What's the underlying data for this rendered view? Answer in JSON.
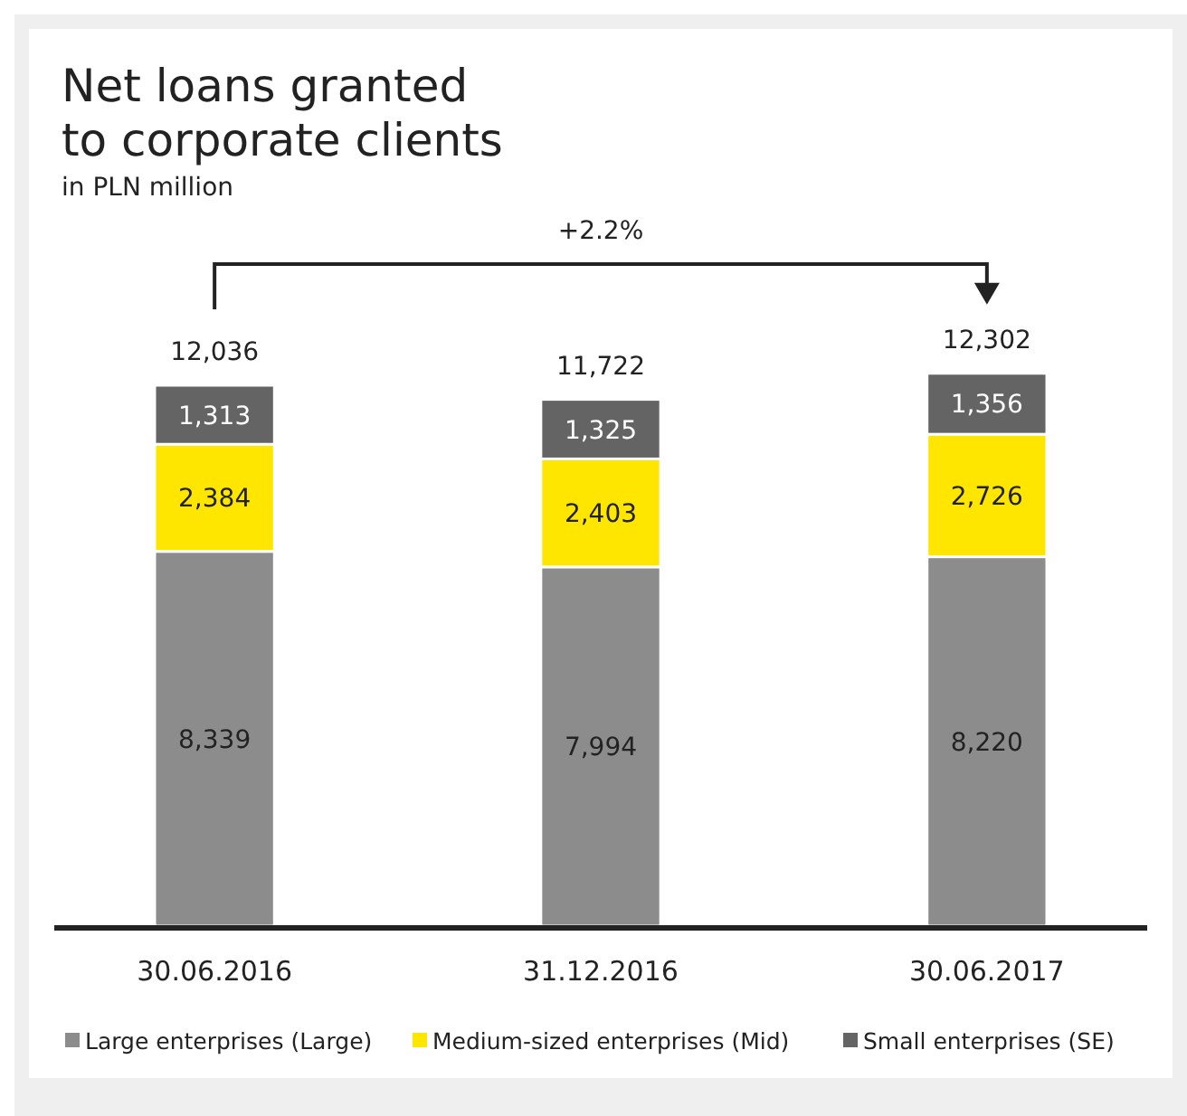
{
  "chart_data": {
    "type": "bar",
    "title": "Net loans granted\nto corporate clients",
    "subtitle": "in PLN million",
    "categories": [
      "30.06.2016",
      "31.12.2016",
      "30.06.2017"
    ],
    "stacked": true,
    "series": [
      {
        "name": "Large enterprises (Large)",
        "color": "#8c8c8c",
        "values": [
          8339,
          7994,
          8220
        ],
        "value_labels": [
          "8,339",
          "7,994",
          "8,220"
        ]
      },
      {
        "name": "Medium-sized enterprises (Mid)",
        "color": "#ffe600",
        "values": [
          2384,
          2403,
          2726
        ],
        "value_labels": [
          "2,384",
          "2,403",
          "2,726"
        ]
      },
      {
        "name": "Small enterprises (SE)",
        "color": "#646464",
        "values": [
          1313,
          1325,
          1356
        ],
        "value_labels": [
          "1,313",
          "1,325",
          "1,356"
        ]
      }
    ],
    "totals": [
      "12,036",
      "11,722",
      "12,302"
    ],
    "annotations": [
      "+2.2%"
    ],
    "legend": "bottom"
  }
}
